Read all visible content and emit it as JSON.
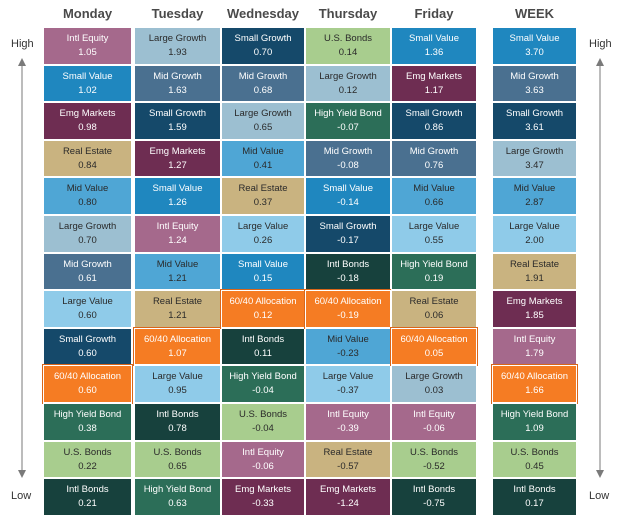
{
  "labels": {
    "high": "High",
    "low": "Low"
  },
  "palette": {
    "Intl Equity": "#a5698c",
    "Small Value": "#1f87bf",
    "Emg Markets": "#6e2d52",
    "Real Estate": "#c9b380",
    "Mid Value": "#4fa6d5",
    "Large Growth": "#9cbfd1",
    "Mid Growth": "#4a7090",
    "Large Value": "#8fcbe9",
    "Small Growth": "#15496a",
    "60/40 Allocation": "#f57c23",
    "High Yield Bond": "#2c6e58",
    "U.S. Bonds": "#a8cd8e",
    "Intl Bonds": "#17413d",
    "Mid Growth Alt": "#5a7a98"
  },
  "chart_data": {
    "type": "table",
    "columns": [
      {
        "day": "Monday",
        "cells": [
          {
            "name": "Intl Equity",
            "value": "1.05"
          },
          {
            "name": "Small Value",
            "value": "1.02"
          },
          {
            "name": "Emg Markets",
            "value": "0.98"
          },
          {
            "name": "Real Estate",
            "value": "0.84"
          },
          {
            "name": "Mid Value",
            "value": "0.80"
          },
          {
            "name": "Large Growth",
            "value": "0.70"
          },
          {
            "name": "Mid Growth",
            "value": "0.61"
          },
          {
            "name": "Large Value",
            "value": "0.60"
          },
          {
            "name": "Small Growth",
            "value": "0.60"
          },
          {
            "name": "60/40 Allocation",
            "value": "0.60"
          },
          {
            "name": "High Yield Bond",
            "value": "0.38"
          },
          {
            "name": "U.S. Bonds",
            "value": "0.22"
          },
          {
            "name": "Intl Bonds",
            "value": "0.21"
          }
        ]
      },
      {
        "day": "Tuesday",
        "cells": [
          {
            "name": "Large Growth",
            "value": "1.93"
          },
          {
            "name": "Mid Growth",
            "value": "1.63"
          },
          {
            "name": "Small Growth",
            "value": "1.59"
          },
          {
            "name": "Emg Markets",
            "value": "1.27"
          },
          {
            "name": "Small Value",
            "value": "1.26"
          },
          {
            "name": "Intl Equity",
            "value": "1.24"
          },
          {
            "name": "Mid Value",
            "value": "1.21"
          },
          {
            "name": "Real Estate",
            "value": "1.21"
          },
          {
            "name": "60/40 Allocation",
            "value": "1.07"
          },
          {
            "name": "Large Value",
            "value": "0.95"
          },
          {
            "name": "Intl Bonds",
            "value": "0.78"
          },
          {
            "name": "U.S. Bonds",
            "value": "0.65"
          },
          {
            "name": "High Yield Bond",
            "value": "0.63"
          }
        ]
      },
      {
        "day": "Wednesday",
        "cells": [
          {
            "name": "Small Growth",
            "value": "0.70"
          },
          {
            "name": "Mid Growth",
            "value": "0.68"
          },
          {
            "name": "Large Growth",
            "value": "0.65"
          },
          {
            "name": "Mid Value",
            "value": "0.41"
          },
          {
            "name": "Real Estate",
            "value": "0.37"
          },
          {
            "name": "Large Value",
            "value": "0.26"
          },
          {
            "name": "Small Value",
            "value": "0.15"
          },
          {
            "name": "60/40 Allocation",
            "value": "0.12"
          },
          {
            "name": "Intl Bonds",
            "value": "0.11"
          },
          {
            "name": "High Yield Bond",
            "value": "-0.04"
          },
          {
            "name": "U.S. Bonds",
            "value": "-0.04"
          },
          {
            "name": "Intl Equity",
            "value": "-0.06"
          },
          {
            "name": "Emg Markets",
            "value": "-0.33"
          }
        ]
      },
      {
        "day": "Thursday",
        "cells": [
          {
            "name": "U.S. Bonds",
            "value": "0.14"
          },
          {
            "name": "Large Growth",
            "value": "0.12"
          },
          {
            "name": "High Yield Bond",
            "value": "-0.07"
          },
          {
            "name": "Mid Growth",
            "value": "-0.08"
          },
          {
            "name": "Small Value",
            "value": "-0.14"
          },
          {
            "name": "Small Growth",
            "value": "-0.17"
          },
          {
            "name": "Intl Bonds",
            "value": "-0.18"
          },
          {
            "name": "60/40 Allocation",
            "value": "-0.19"
          },
          {
            "name": "Mid Value",
            "value": "-0.23"
          },
          {
            "name": "Large Value",
            "value": "-0.37"
          },
          {
            "name": "Intl Equity",
            "value": "-0.39"
          },
          {
            "name": "Real Estate",
            "value": "-0.57"
          },
          {
            "name": "Emg Markets",
            "value": "-1.24"
          }
        ]
      },
      {
        "day": "Friday",
        "cells": [
          {
            "name": "Small Value",
            "value": "1.36"
          },
          {
            "name": "Emg Markets",
            "value": "1.17"
          },
          {
            "name": "Small Growth",
            "value": "0.86"
          },
          {
            "name": "Mid Growth",
            "value": "0.76"
          },
          {
            "name": "Mid Value",
            "value": "0.66"
          },
          {
            "name": "Large Value",
            "value": "0.55"
          },
          {
            "name": "High Yield Bond",
            "value": "0.19"
          },
          {
            "name": "Real Estate",
            "value": "0.06"
          },
          {
            "name": "60/40 Allocation",
            "value": "0.05"
          },
          {
            "name": "Large Growth",
            "value": "0.03"
          },
          {
            "name": "Intl Equity",
            "value": "-0.06"
          },
          {
            "name": "U.S. Bonds",
            "value": "-0.52"
          },
          {
            "name": "Intl Bonds",
            "value": "-0.75"
          }
        ]
      },
      {
        "day": "WEEK",
        "cells": [
          {
            "name": "Small Value",
            "value": "3.70"
          },
          {
            "name": "Mid Growth",
            "value": "3.63"
          },
          {
            "name": "Small Growth",
            "value": "3.61"
          },
          {
            "name": "Large Growth",
            "value": "3.47"
          },
          {
            "name": "Mid Value",
            "value": "2.87"
          },
          {
            "name": "Large Value",
            "value": "2.00"
          },
          {
            "name": "Real Estate",
            "value": "1.91"
          },
          {
            "name": "Emg Markets",
            "value": "1.85"
          },
          {
            "name": "Intl Equity",
            "value": "1.79"
          },
          {
            "name": "60/40 Allocation",
            "value": "1.66"
          },
          {
            "name": "High Yield Bond",
            "value": "1.09"
          },
          {
            "name": "U.S. Bonds",
            "value": "0.45"
          },
          {
            "name": "Intl Bonds",
            "value": "0.17"
          }
        ]
      }
    ]
  }
}
